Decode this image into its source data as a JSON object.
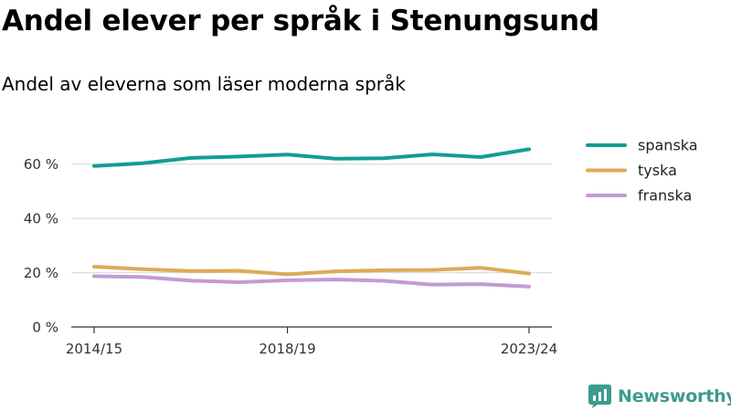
{
  "title": "Andel elever per språk i Stenungsund",
  "subtitle": "Andel av eleverna som läser moderna språk",
  "logo_text": "Newsworthy",
  "chart_data": {
    "type": "line",
    "title": "Andel elever per språk i Stenungsund",
    "subtitle": "Andel av eleverna som läser moderna språk",
    "xlabel": "",
    "ylabel": "",
    "x": [
      "2014/15",
      "2015/16",
      "2016/17",
      "2017/18",
      "2018/19",
      "2019/20",
      "2020/21",
      "2021/22",
      "2022/23",
      "2023/24"
    ],
    "x_tick_labels": [
      "2014/15",
      "2018/19",
      "2023/24"
    ],
    "y_ticks": [
      0,
      20,
      40,
      60
    ],
    "y_tick_labels": [
      "0 %",
      "20 %",
      "40 %",
      "60 %"
    ],
    "ylim": [
      0,
      70
    ],
    "grid": true,
    "legend_position": "right",
    "series": [
      {
        "name": "spanska",
        "color": "#0f9e94",
        "values": [
          59.3,
          60.3,
          62.3,
          62.8,
          63.5,
          62.0,
          62.2,
          63.6,
          62.6,
          65.5
        ]
      },
      {
        "name": "tyska",
        "color": "#dbab57",
        "values": [
          22.2,
          21.3,
          20.6,
          20.7,
          19.4,
          20.5,
          20.9,
          21.0,
          21.8,
          19.7
        ]
      },
      {
        "name": "franska",
        "color": "#c49bd1",
        "values": [
          18.7,
          18.4,
          17.1,
          16.5,
          17.2,
          17.5,
          17.0,
          15.6,
          15.8,
          14.9
        ]
      }
    ]
  }
}
